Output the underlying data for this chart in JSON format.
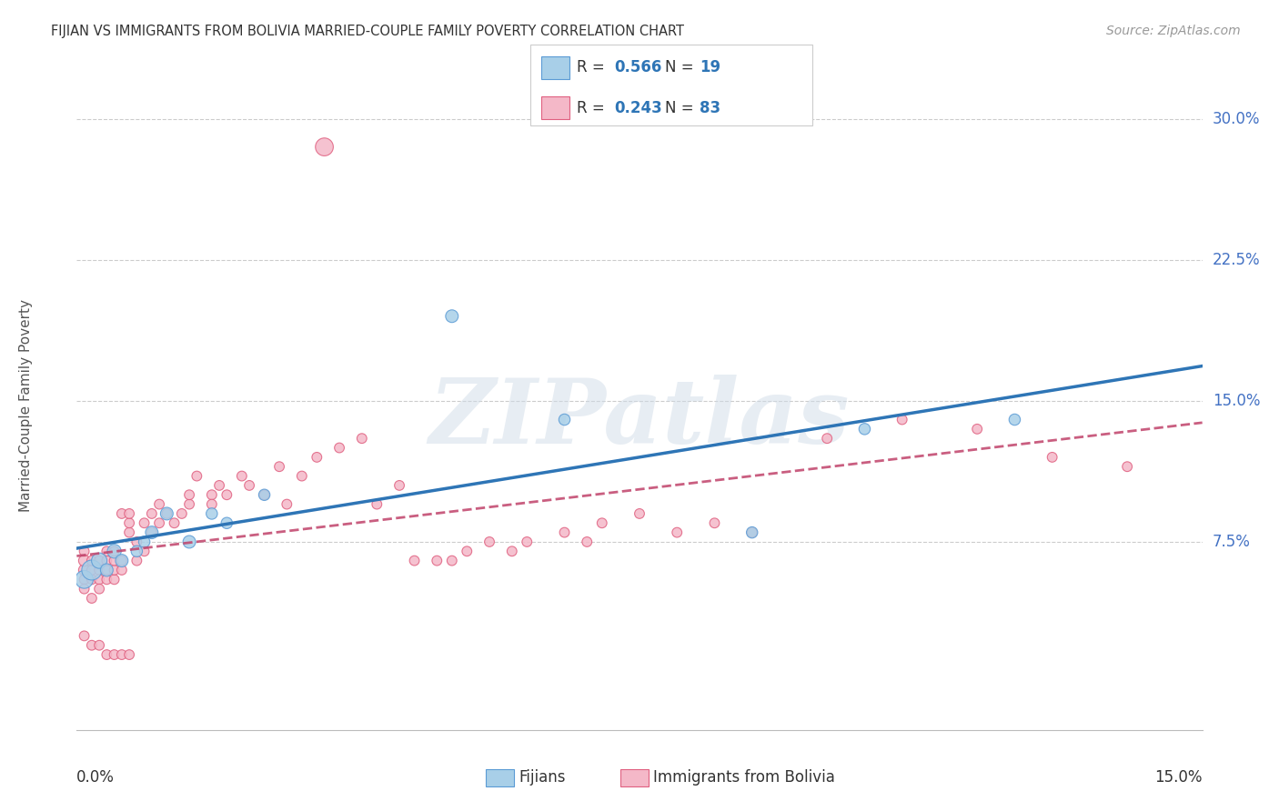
{
  "title": "FIJIAN VS IMMIGRANTS FROM BOLIVIA MARRIED-COUPLE FAMILY POVERTY CORRELATION CHART",
  "source": "Source: ZipAtlas.com",
  "ylabel": "Married-Couple Family Poverty",
  "xmin": 0.0,
  "xmax": 0.15,
  "ymin": -0.025,
  "ymax": 0.32,
  "fijian_color": "#a8cfe8",
  "fijian_edge_color": "#5b9bd5",
  "fijian_line_color": "#2e75b6",
  "bolivia_color": "#f4b8c8",
  "bolivia_edge_color": "#e06080",
  "bolivia_line_color": "#c0426a",
  "legend_r1": "R = 0.566",
  "legend_n1": "N = 19",
  "legend_r2": "R = 0.243",
  "legend_n2": "N = 83",
  "label_fijian": "Fijians",
  "label_bolivia": "Immigrants from Bolivia",
  "ytick_vals": [
    0.075,
    0.15,
    0.225,
    0.3
  ],
  "ytick_labels": [
    "7.5%",
    "15.0%",
    "22.5%",
    "30.0%"
  ],
  "fijian_x": [
    0.001,
    0.002,
    0.003,
    0.004,
    0.005,
    0.006,
    0.008,
    0.009,
    0.01,
    0.012,
    0.015,
    0.018,
    0.02,
    0.025,
    0.05,
    0.065,
    0.09,
    0.105,
    0.125
  ],
  "fijian_y": [
    0.055,
    0.06,
    0.065,
    0.06,
    0.07,
    0.065,
    0.07,
    0.075,
    0.08,
    0.09,
    0.075,
    0.09,
    0.085,
    0.1,
    0.195,
    0.14,
    0.08,
    0.135,
    0.14
  ],
  "fijian_s": [
    200,
    250,
    150,
    100,
    120,
    100,
    80,
    80,
    100,
    100,
    100,
    80,
    80,
    80,
    100,
    80,
    80,
    80,
    80
  ],
  "bolivia_x": [
    0.001,
    0.001,
    0.001,
    0.001,
    0.001,
    0.002,
    0.002,
    0.002,
    0.002,
    0.003,
    0.003,
    0.003,
    0.003,
    0.004,
    0.004,
    0.004,
    0.004,
    0.005,
    0.005,
    0.005,
    0.005,
    0.006,
    0.006,
    0.006,
    0.007,
    0.007,
    0.007,
    0.008,
    0.008,
    0.009,
    0.009,
    0.01,
    0.01,
    0.011,
    0.011,
    0.012,
    0.013,
    0.014,
    0.015,
    0.015,
    0.016,
    0.018,
    0.018,
    0.019,
    0.02,
    0.022,
    0.023,
    0.025,
    0.027,
    0.028,
    0.03,
    0.032,
    0.033,
    0.035,
    0.038,
    0.04,
    0.043,
    0.045,
    0.048,
    0.05,
    0.052,
    0.055,
    0.058,
    0.06,
    0.065,
    0.068,
    0.07,
    0.075,
    0.08,
    0.085,
    0.09,
    0.1,
    0.11,
    0.12,
    0.13,
    0.14,
    0.001,
    0.002,
    0.003,
    0.004,
    0.005,
    0.006,
    0.007
  ],
  "bolivia_y": [
    0.06,
    0.065,
    0.055,
    0.05,
    0.07,
    0.055,
    0.06,
    0.065,
    0.045,
    0.06,
    0.065,
    0.055,
    0.05,
    0.06,
    0.065,
    0.07,
    0.055,
    0.055,
    0.06,
    0.065,
    0.07,
    0.06,
    0.065,
    0.09,
    0.08,
    0.085,
    0.09,
    0.075,
    0.065,
    0.07,
    0.085,
    0.08,
    0.09,
    0.085,
    0.095,
    0.09,
    0.085,
    0.09,
    0.095,
    0.1,
    0.11,
    0.1,
    0.095,
    0.105,
    0.1,
    0.11,
    0.105,
    0.1,
    0.115,
    0.095,
    0.11,
    0.12,
    0.285,
    0.125,
    0.13,
    0.095,
    0.105,
    0.065,
    0.065,
    0.065,
    0.07,
    0.075,
    0.07,
    0.075,
    0.08,
    0.075,
    0.085,
    0.09,
    0.08,
    0.085,
    0.08,
    0.13,
    0.14,
    0.135,
    0.12,
    0.115,
    0.025,
    0.02,
    0.02,
    0.015,
    0.015,
    0.015,
    0.015
  ],
  "bolivia_s": [
    80,
    80,
    60,
    60,
    60,
    60,
    60,
    60,
    60,
    60,
    60,
    60,
    60,
    60,
    60,
    60,
    60,
    60,
    60,
    60,
    60,
    60,
    60,
    60,
    60,
    60,
    60,
    60,
    60,
    60,
    60,
    60,
    60,
    60,
    60,
    60,
    60,
    60,
    60,
    60,
    60,
    60,
    60,
    60,
    60,
    60,
    60,
    60,
    60,
    60,
    60,
    60,
    200,
    60,
    60,
    60,
    60,
    60,
    60,
    60,
    60,
    60,
    60,
    60,
    60,
    60,
    60,
    60,
    60,
    60,
    60,
    60,
    60,
    60,
    60,
    60,
    60,
    60,
    60,
    60,
    60,
    60,
    60
  ],
  "watermark_text": "ZIPatlas",
  "background_color": "#ffffff",
  "grid_color": "#cccccc",
  "spine_color": "#bbbbbb"
}
